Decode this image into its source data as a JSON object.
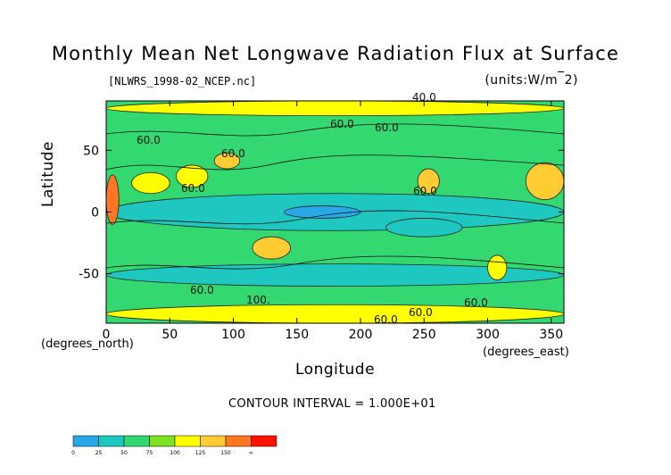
{
  "chart_data": {
    "type": "heatmap",
    "title": "Monthly Mean Net Longwave Radiation Flux at Surface",
    "source_file": "[NLWRS_1998-02_NCEP.nc]",
    "units": "(units:W/m^2)",
    "xlabel": "Longitude",
    "ylabel": "Latitude",
    "x_unit_label": "(degrees_east)",
    "y_unit_label": "(degrees_north)",
    "xlim": [
      0,
      360
    ],
    "ylim": [
      -90,
      90
    ],
    "x_ticks": [
      0,
      50,
      100,
      150,
      200,
      250,
      300,
      350
    ],
    "y_ticks": [
      50,
      0,
      -50
    ],
    "contour_interval_text": "CONTOUR INTERVAL = 1.000E+01",
    "contour_labels": [
      "40.0",
      "60.0",
      "60.0",
      "60.0",
      "60.0",
      "60.0",
      "60.0",
      "60.0",
      "100.",
      "60.0",
      "60.0",
      "60.0"
    ],
    "colorbar": {
      "levels": [
        0,
        25,
        50,
        75,
        100,
        125,
        150
      ],
      "labels": [
        "0",
        "25",
        "50",
        "75",
        "100",
        "125",
        "150",
        "∞"
      ],
      "colors": [
        "#29a8e8",
        "#1ec8c0",
        "#33d870",
        "#7de020",
        "#ffff00",
        "#ffcc33",
        "#ff7722",
        "#ff1100"
      ]
    },
    "regions": [
      {
        "lon": [
          0,
          360
        ],
        "lat": [
          -90,
          90
        ],
        "level": 2
      },
      {
        "lon": [
          0,
          360
        ],
        "lat": [
          -15,
          15
        ],
        "level": 1
      },
      {
        "lon": [
          0,
          360
        ],
        "lat": [
          -60,
          -42
        ],
        "level": 1
      },
      {
        "lon": [
          0,
          10
        ],
        "lat": [
          -10,
          30
        ],
        "level": 6
      },
      {
        "lon": [
          20,
          50
        ],
        "lat": [
          15,
          32
        ],
        "level": 4
      },
      {
        "lon": [
          55,
          80
        ],
        "lat": [
          20,
          38
        ],
        "level": 4
      },
      {
        "lon": [
          85,
          105
        ],
        "lat": [
          35,
          48
        ],
        "level": 5
      },
      {
        "lon": [
          115,
          145
        ],
        "lat": [
          -38,
          -20
        ],
        "level": 5
      },
      {
        "lon": [
          245,
          262
        ],
        "lat": [
          15,
          35
        ],
        "level": 5
      },
      {
        "lon": [
          300,
          315
        ],
        "lat": [
          -55,
          -35
        ],
        "level": 4
      },
      {
        "lon": [
          330,
          360
        ],
        "lat": [
          10,
          40
        ],
        "level": 5
      },
      {
        "lon": [
          0,
          360
        ],
        "lat": [
          -90,
          -75
        ],
        "level": 4
      },
      {
        "lon": [
          0,
          360
        ],
        "lat": [
          78,
          90
        ],
        "level": 4
      },
      {
        "lon": [
          140,
          200
        ],
        "lat": [
          -5,
          5
        ],
        "level": 0
      },
      {
        "lon": [
          220,
          280
        ],
        "lat": [
          -20,
          -5
        ],
        "level": 1
      }
    ]
  }
}
